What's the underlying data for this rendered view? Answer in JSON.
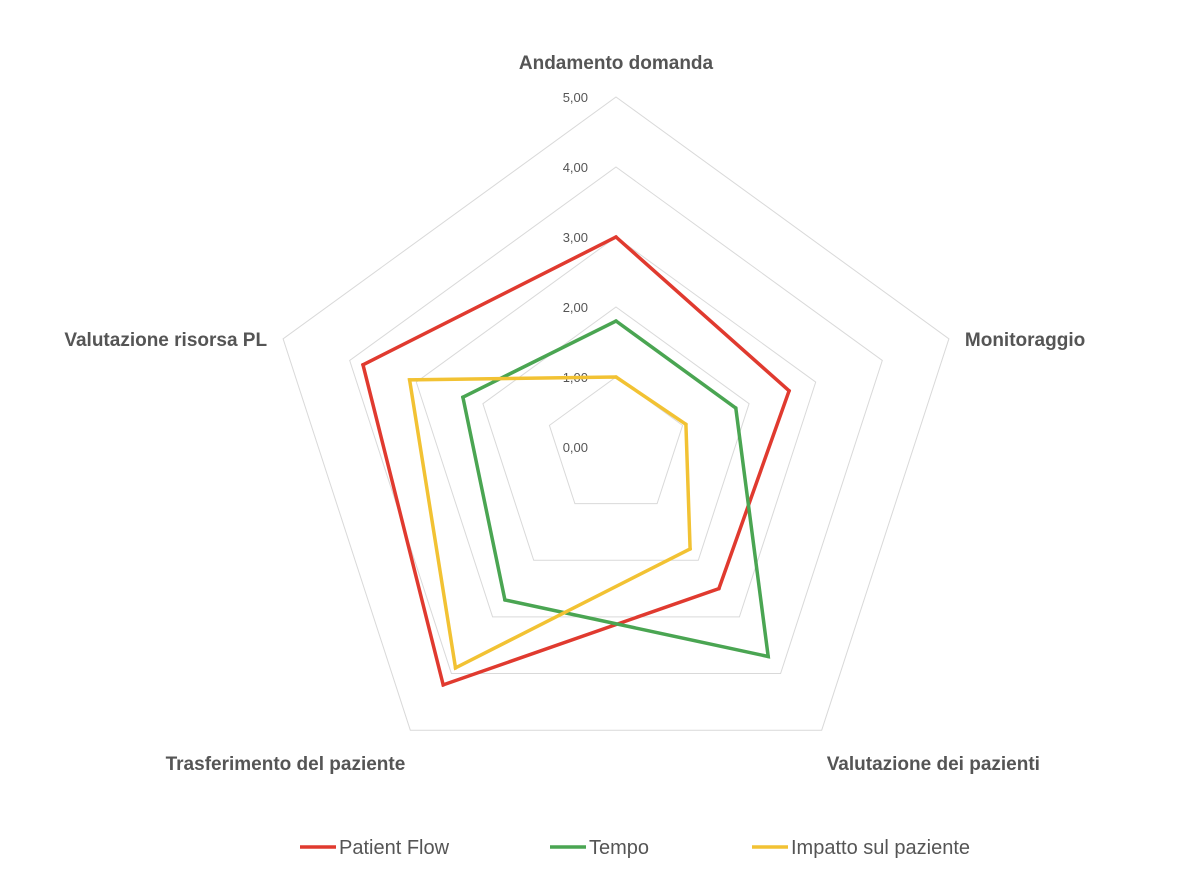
{
  "chart_data": {
    "type": "radar",
    "categories": [
      "Andamento domanda",
      "Monitoraggio",
      "Valutazione dei pazienti",
      "Trasferimento del paziente",
      "Valutazione risorsa PL"
    ],
    "series": [
      {
        "name": "Patient Flow",
        "color": "#e03a2f",
        "values": [
          3.0,
          2.6,
          2.5,
          4.2,
          3.8
        ]
      },
      {
        "name": "Tempo",
        "color": "#4aa552",
        "values": [
          1.8,
          1.8,
          3.7,
          2.7,
          2.3
        ]
      },
      {
        "name": "Impatto sul paziente",
        "color": "#f2c233",
        "values": [
          1.0,
          1.05,
          1.8,
          3.9,
          3.1
        ]
      }
    ],
    "rlim": [
      0,
      5
    ],
    "ticks": [
      "0,00",
      "1,00",
      "2,00",
      "3,00",
      "4,00",
      "5,00"
    ],
    "grid": true,
    "legend": "bottom"
  }
}
